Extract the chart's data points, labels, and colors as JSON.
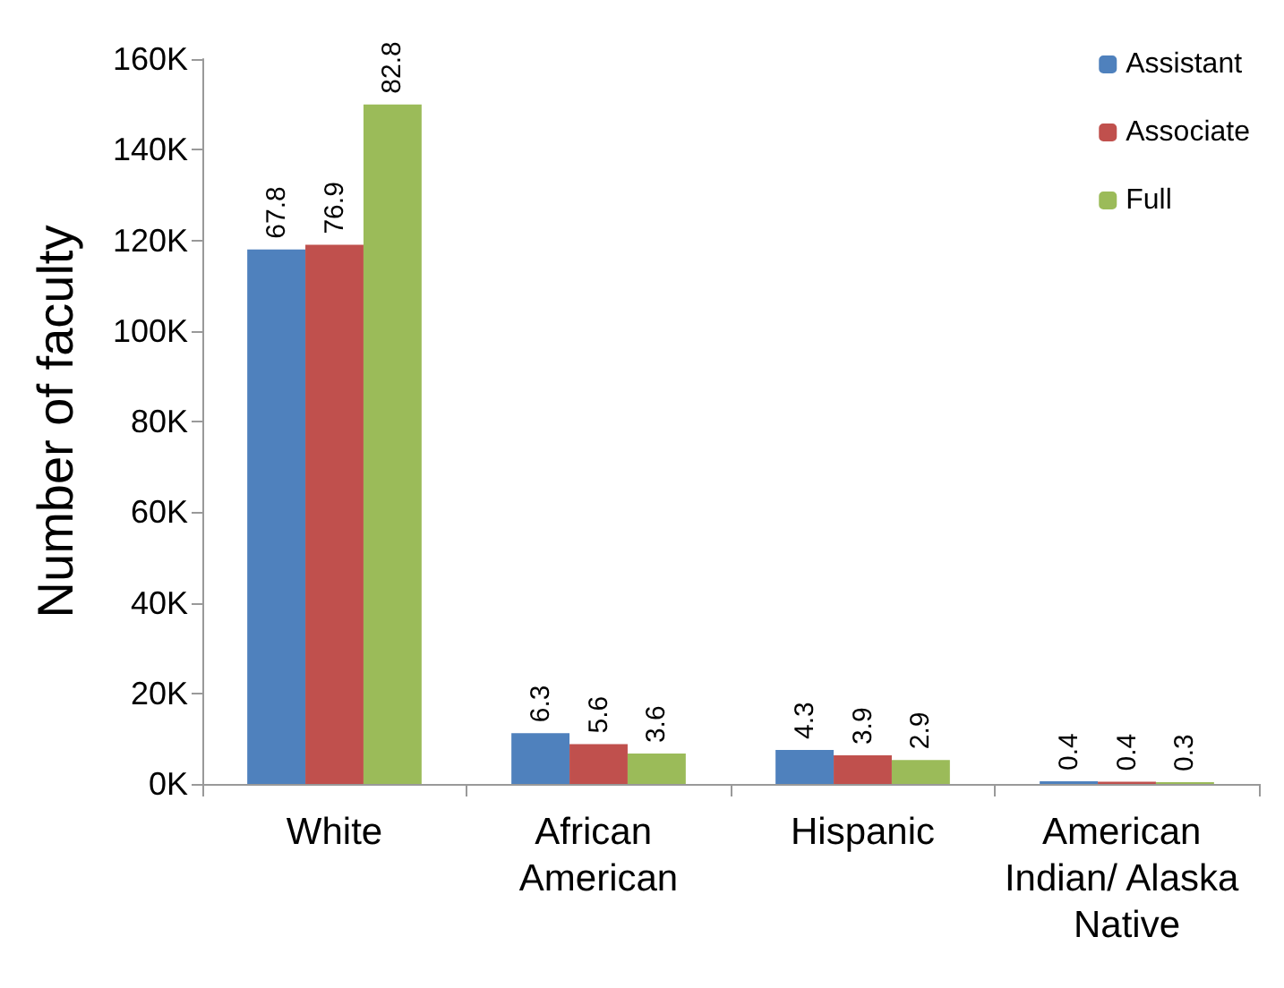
{
  "chart_data": {
    "type": "bar",
    "ylabel": "Number of faculty",
    "categories": [
      "White",
      "African American",
      "Hispanic",
      "American Indian/ Alaska Native"
    ],
    "series": [
      {
        "name": "Assistant",
        "color": "#4f81bd",
        "values": [
          118,
          11.2,
          7.5,
          0.6
        ]
      },
      {
        "name": "Associate",
        "color": "#c0504d",
        "values": [
          119,
          8.8,
          6.3,
          0.5
        ]
      },
      {
        "name": "Full",
        "color": "#9bbb59",
        "values": [
          150,
          6.7,
          5.3,
          0.4
        ]
      }
    ],
    "annotations": [
      "67.8",
      "76.9",
      "82.8",
      "6.3",
      "5.6",
      "3.6",
      "4.3",
      "3.9",
      "2.9",
      "0.4",
      "0.4",
      "0.3"
    ],
    "ylim": [
      0,
      160
    ],
    "yticks": [
      {
        "value": 0,
        "label": "0K"
      },
      {
        "value": 20,
        "label": "20K"
      },
      {
        "value": 40,
        "label": "40K"
      },
      {
        "value": 60,
        "label": "60K"
      },
      {
        "value": 80,
        "label": "80K"
      },
      {
        "value": 100,
        "label": "100K"
      },
      {
        "value": 120,
        "label": "120K"
      },
      {
        "value": 140,
        "label": "140K"
      },
      {
        "value": 160,
        "label": "160K"
      }
    ],
    "grid": false,
    "legend": "top right"
  }
}
